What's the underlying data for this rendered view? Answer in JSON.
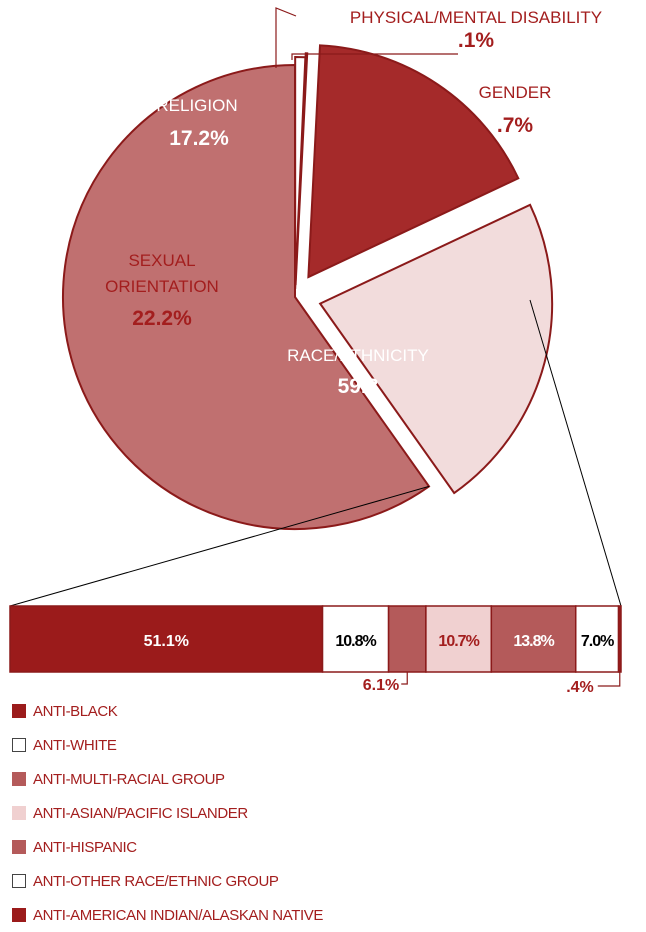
{
  "chart_data": [
    {
      "type": "pie",
      "slices": [
        {
          "label": "RACE/ETHNICITY",
          "value_text": "59.8",
          "value": 59.8,
          "color": "#c07070"
        },
        {
          "label": "SEXUAL ORIENTATION",
          "value_text": "22.2%",
          "value": 22.2,
          "color": "#f2dcdc"
        },
        {
          "label": "RELIGION",
          "value_text": "17.2%",
          "value": 17.2,
          "color": "#a52a2a"
        },
        {
          "label": "PHYSICAL/MENTAL DISABILITY",
          "value_text": ".1%",
          "value": 0.1,
          "color": "#a52a2a"
        },
        {
          "label": "GENDER",
          "value_text": ".7%",
          "value": 0.7,
          "color": "#ffffff"
        }
      ]
    },
    {
      "type": "bar",
      "stacked": true,
      "orientation": "horizontal",
      "segments": [
        {
          "label": "ANTI-BLACK",
          "value_text": "51.1%",
          "value": 51.1,
          "color": "#9b1b1b"
        },
        {
          "label": "ANTI-WHITE",
          "value_text": "10.8%",
          "value": 10.8,
          "color": "#ffffff"
        },
        {
          "label": "ANTI-MULTI-RACIAL GROUP",
          "value_text": "6.1%",
          "value": 6.1,
          "color": "#b45a5a"
        },
        {
          "label": "ANTI-ASIAN/PACIFIC ISLANDER",
          "value_text": "10.7%",
          "value": 10.7,
          "color": "#f0d0d0"
        },
        {
          "label": "ANTI-HISPANIC",
          "value_text": "13.8%",
          "value": 13.8,
          "color": "#b45a5a"
        },
        {
          "label": "ANTI-OTHER RACE/ETHNIC GROUP",
          "value_text": "7.0%",
          "value": 7.0,
          "color": "#ffffff"
        },
        {
          "label": "ANTI-AMERICAN INDIAN/ALASKAN NATIVE",
          "value_text": ".4%",
          "value": 0.4,
          "color": "#9b1b1b"
        }
      ]
    }
  ]
}
